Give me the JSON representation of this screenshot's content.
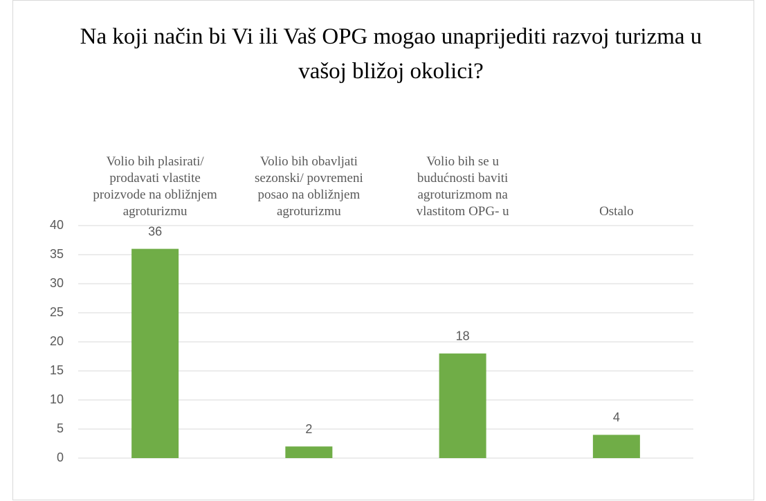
{
  "chart_data": {
    "type": "bar",
    "title": "Na koji način bi Vi ili Vaš OPG mogao unaprijediti razvoj turizma u vašoj bližoj okolici?",
    "categories": [
      "Volio bih plasirati/ prodavati vlastite proizvode na obližnjem agroturizmu",
      "Volio bih obavljati sezonski/ povremeni posao na obližnjem agroturizmu",
      "Volio bih se u budućnosti baviti agroturizmom na vlastitom OPG- u",
      "Ostalo"
    ],
    "values": [
      36,
      2,
      18,
      4
    ],
    "color": "#70ad47",
    "ylim": [
      0,
      40
    ],
    "yticks": [
      0,
      5,
      10,
      15,
      20,
      25,
      30,
      35,
      40
    ],
    "grid": true
  }
}
